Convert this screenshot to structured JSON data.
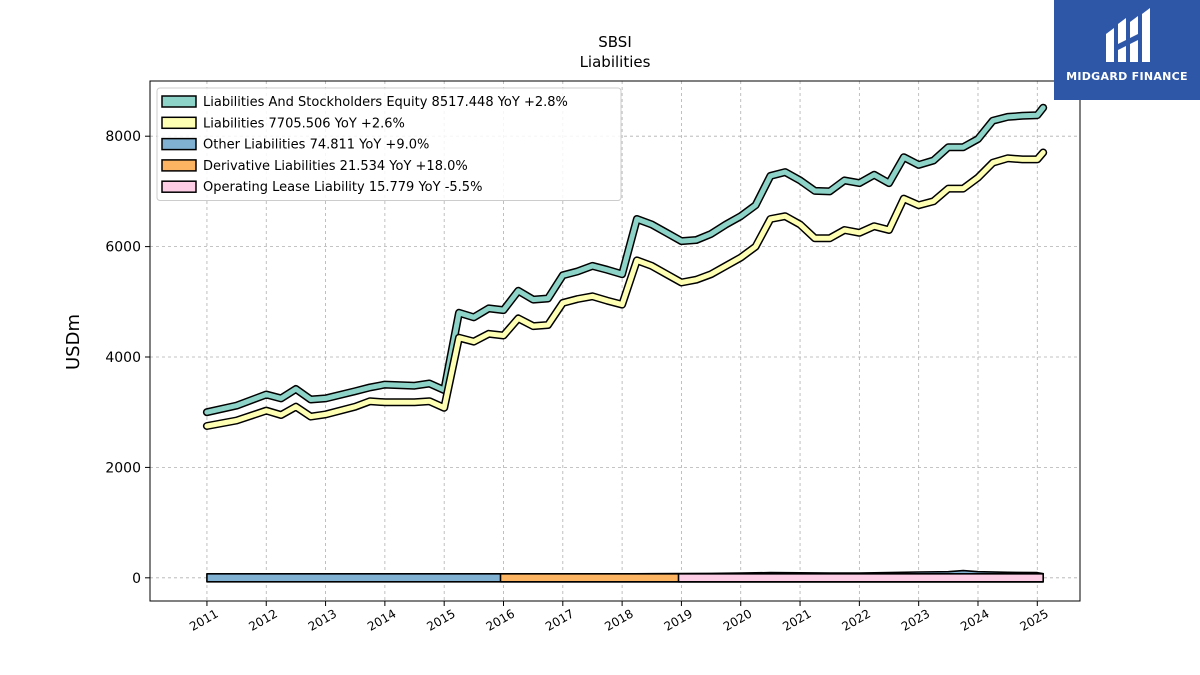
{
  "chart_data": {
    "type": "line",
    "title": "SBSI",
    "subtitle": "Liabilities",
    "ylabel": "USDm",
    "xlabel": "",
    "ylim": [
      -420,
      9000
    ],
    "xlim": [
      2010.04,
      2025.72
    ],
    "x_ticks": [
      2011,
      2012,
      2013,
      2014,
      2015,
      2016,
      2017,
      2018,
      2019,
      2020,
      2021,
      2022,
      2023,
      2024,
      2025
    ],
    "x_tick_labels": [
      "2011",
      "2012",
      "2013",
      "2014",
      "2015",
      "2016",
      "2017",
      "2018",
      "2019",
      "2020",
      "2021",
      "2022",
      "2023",
      "2024",
      "2025"
    ],
    "y_ticks": [
      0,
      2000,
      4000,
      6000,
      8000
    ],
    "y_tick_labels": [
      "0",
      "2000",
      "4000",
      "6000",
      "8000"
    ],
    "grid": true,
    "legend_position": "top-left",
    "series": [
      {
        "name": "Liabilities And Stockholders Equity",
        "legend_label": "Liabilities And Stockholders Equity  8517.448 YoY +2.8%",
        "color": "#8dd3c7",
        "points": [
          [
            2011.0,
            3000
          ],
          [
            2011.5,
            3120
          ],
          [
            2012.0,
            3320
          ],
          [
            2012.25,
            3250
          ],
          [
            2012.5,
            3420
          ],
          [
            2012.75,
            3230
          ],
          [
            2013.0,
            3250
          ],
          [
            2013.5,
            3380
          ],
          [
            2013.75,
            3450
          ],
          [
            2014.0,
            3500
          ],
          [
            2014.5,
            3480
          ],
          [
            2014.75,
            3520
          ],
          [
            2015.0,
            3400
          ],
          [
            2015.25,
            4800
          ],
          [
            2015.5,
            4720
          ],
          [
            2015.75,
            4880
          ],
          [
            2016.0,
            4850
          ],
          [
            2016.25,
            5200
          ],
          [
            2016.5,
            5040
          ],
          [
            2016.75,
            5060
          ],
          [
            2017.0,
            5480
          ],
          [
            2017.25,
            5550
          ],
          [
            2017.5,
            5650
          ],
          [
            2017.75,
            5580
          ],
          [
            2018.0,
            5500
          ],
          [
            2018.25,
            6500
          ],
          [
            2018.5,
            6400
          ],
          [
            2018.75,
            6250
          ],
          [
            2019.0,
            6100
          ],
          [
            2019.25,
            6120
          ],
          [
            2019.5,
            6230
          ],
          [
            2019.75,
            6400
          ],
          [
            2020.0,
            6550
          ],
          [
            2020.25,
            6750
          ],
          [
            2020.5,
            7280
          ],
          [
            2020.75,
            7350
          ],
          [
            2021.0,
            7200
          ],
          [
            2021.25,
            7010
          ],
          [
            2021.5,
            7000
          ],
          [
            2021.75,
            7200
          ],
          [
            2022.0,
            7150
          ],
          [
            2022.25,
            7300
          ],
          [
            2022.5,
            7150
          ],
          [
            2022.75,
            7620
          ],
          [
            2023.0,
            7480
          ],
          [
            2023.25,
            7560
          ],
          [
            2023.5,
            7800
          ],
          [
            2023.75,
            7800
          ],
          [
            2024.0,
            7950
          ],
          [
            2024.25,
            8280
          ],
          [
            2024.5,
            8350
          ],
          [
            2024.75,
            8370
          ],
          [
            2025.0,
            8380
          ],
          [
            2025.1,
            8517
          ]
        ]
      },
      {
        "name": "Liabilities",
        "legend_label": "Liabilities  7705.506 YoY +2.6%",
        "color": "#ffffb3",
        "points": [
          [
            2011.0,
            2750
          ],
          [
            2011.5,
            2850
          ],
          [
            2012.0,
            3030
          ],
          [
            2012.25,
            2950
          ],
          [
            2012.5,
            3100
          ],
          [
            2012.75,
            2920
          ],
          [
            2013.0,
            2960
          ],
          [
            2013.5,
            3100
          ],
          [
            2013.75,
            3200
          ],
          [
            2014.0,
            3180
          ],
          [
            2014.5,
            3180
          ],
          [
            2014.75,
            3200
          ],
          [
            2015.0,
            3080
          ],
          [
            2015.25,
            4350
          ],
          [
            2015.5,
            4280
          ],
          [
            2015.75,
            4420
          ],
          [
            2016.0,
            4390
          ],
          [
            2016.25,
            4700
          ],
          [
            2016.5,
            4560
          ],
          [
            2016.75,
            4580
          ],
          [
            2017.0,
            4980
          ],
          [
            2017.25,
            5050
          ],
          [
            2017.5,
            5100
          ],
          [
            2017.75,
            5020
          ],
          [
            2018.0,
            4950
          ],
          [
            2018.25,
            5750
          ],
          [
            2018.5,
            5650
          ],
          [
            2018.75,
            5500
          ],
          [
            2019.0,
            5350
          ],
          [
            2019.25,
            5400
          ],
          [
            2019.5,
            5500
          ],
          [
            2019.75,
            5650
          ],
          [
            2020.0,
            5800
          ],
          [
            2020.25,
            6000
          ],
          [
            2020.5,
            6500
          ],
          [
            2020.75,
            6550
          ],
          [
            2021.0,
            6400
          ],
          [
            2021.25,
            6150
          ],
          [
            2021.5,
            6150
          ],
          [
            2021.75,
            6300
          ],
          [
            2022.0,
            6250
          ],
          [
            2022.25,
            6370
          ],
          [
            2022.5,
            6300
          ],
          [
            2022.75,
            6870
          ],
          [
            2023.0,
            6750
          ],
          [
            2023.25,
            6820
          ],
          [
            2023.5,
            7050
          ],
          [
            2023.75,
            7050
          ],
          [
            2024.0,
            7250
          ],
          [
            2024.25,
            7520
          ],
          [
            2024.5,
            7600
          ],
          [
            2024.75,
            7580
          ],
          [
            2025.0,
            7580
          ],
          [
            2025.1,
            7705
          ]
        ]
      },
      {
        "name": "Other Liabilities",
        "legend_label": "Other Liabilities  74.811 YoY +9.0%",
        "color": "#80b1d3",
        "fill": true,
        "points": [
          [
            2011.0,
            40
          ],
          [
            2011.5,
            50
          ],
          [
            2012.0,
            55
          ],
          [
            2012.5,
            48
          ],
          [
            2013.0,
            52
          ],
          [
            2013.5,
            55
          ],
          [
            2014.0,
            45
          ],
          [
            2014.5,
            48
          ],
          [
            2015.0,
            55
          ],
          [
            2015.5,
            58
          ],
          [
            2016.0,
            60
          ],
          [
            2016.5,
            62
          ],
          [
            2017.0,
            65
          ],
          [
            2017.5,
            70
          ],
          [
            2018.0,
            72
          ],
          [
            2018.5,
            75
          ],
          [
            2019.0,
            78
          ],
          [
            2019.5,
            80
          ],
          [
            2020.0,
            85
          ],
          [
            2020.5,
            95
          ],
          [
            2021.0,
            90
          ],
          [
            2021.5,
            88
          ],
          [
            2022.0,
            85
          ],
          [
            2022.5,
            95
          ],
          [
            2023.0,
            105
          ],
          [
            2023.5,
            110
          ],
          [
            2023.75,
            130
          ],
          [
            2024.0,
            110
          ],
          [
            2024.5,
            100
          ],
          [
            2025.0,
            95
          ],
          [
            2025.1,
            75
          ]
        ]
      },
      {
        "name": "Derivative Liabilities",
        "legend_label": "Derivative Liabilities  21.534 YoY +18.0%",
        "color": "#fdb462",
        "fill": true,
        "points": [
          [
            2015.95,
            10
          ],
          [
            2016.5,
            15
          ],
          [
            2017.0,
            18
          ],
          [
            2017.5,
            20
          ],
          [
            2018.0,
            22
          ],
          [
            2018.5,
            25
          ],
          [
            2019.0,
            20
          ],
          [
            2019.5,
            15
          ],
          [
            2020.0,
            10
          ],
          [
            2020.5,
            5
          ],
          [
            2021.0,
            3
          ],
          [
            2021.5,
            5
          ],
          [
            2022.0,
            10
          ],
          [
            2022.5,
            20
          ],
          [
            2023.0,
            25
          ],
          [
            2023.5,
            22
          ],
          [
            2024.0,
            20
          ],
          [
            2024.5,
            18
          ],
          [
            2025.0,
            19
          ],
          [
            2025.1,
            21.5
          ]
        ]
      },
      {
        "name": "Operating Lease Liability",
        "legend_label": "Operating Lease Liability  15.779 YoY -5.5%",
        "color": "#fccde5",
        "fill": true,
        "points": [
          [
            2018.95,
            10
          ],
          [
            2019.5,
            16
          ],
          [
            2020.0,
            17
          ],
          [
            2020.5,
            17
          ],
          [
            2021.0,
            16
          ],
          [
            2021.5,
            16
          ],
          [
            2022.0,
            16
          ],
          [
            2022.5,
            17
          ],
          [
            2023.0,
            17
          ],
          [
            2023.5,
            16
          ],
          [
            2024.0,
            16
          ],
          [
            2024.5,
            16
          ],
          [
            2025.0,
            16
          ],
          [
            2025.1,
            15.8
          ]
        ]
      }
    ]
  },
  "logo": {
    "text": "MIDGARD FINANCE",
    "icon": "midgard-logo-icon",
    "background": "#2f57a8"
  }
}
